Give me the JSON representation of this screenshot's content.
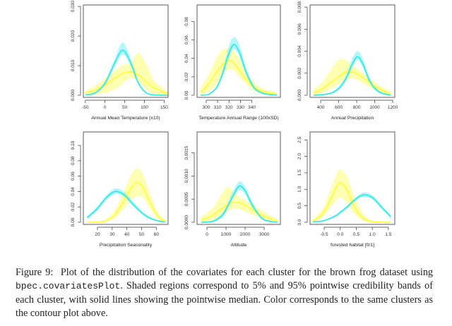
{
  "colors": {
    "cluster_yellow": "#ffff33",
    "cluster_yellow_band": "#ffff66",
    "cluster_cyan": "#2ee6e6",
    "cluster_cyan_band": "#66f0f5",
    "axis": "#333333"
  },
  "chart_data": [
    {
      "type": "area",
      "xlabel": "Annual Mean Temperature (x10)",
      "xlim": [
        -55,
        160
      ],
      "ylim": [
        0,
        0.0305
      ],
      "xticks": [
        "-50",
        "0",
        "50",
        "100",
        "150"
      ],
      "yticks": [
        "0.000",
        "0.010",
        "0.020",
        "0.030"
      ],
      "x": [
        -50,
        -25,
        0,
        25,
        45,
        65,
        85,
        105,
        125,
        160
      ],
      "series": [
        {
          "color": "yellow",
          "median": [
            0.0008,
            0.0018,
            0.0035,
            0.0058,
            0.0074,
            0.0079,
            0.0068,
            0.0045,
            0.0025,
            0.0005
          ],
          "lower": [
            0.0001,
            0.0003,
            0.0008,
            0.002,
            0.004,
            0.0058,
            0.0045,
            0.002,
            0.0005,
            0
          ],
          "upper": [
            0.0015,
            0.0032,
            0.0055,
            0.0083,
            0.0102,
            0.011,
            0.0143,
            0.0105,
            0.005,
            0.0012
          ]
        },
        {
          "color": "cyan",
          "median": [
            0.0001,
            0.0008,
            0.004,
            0.011,
            0.0152,
            0.011,
            0.004,
            0.0008,
            0.0001,
            0
          ],
          "lower": [
            0,
            0.0006,
            0.0035,
            0.0098,
            0.0138,
            0.0098,
            0.0035,
            0.0006,
            0,
            0
          ],
          "upper": [
            0.0002,
            0.0011,
            0.0048,
            0.0124,
            0.0178,
            0.0124,
            0.0047,
            0.001,
            0.0002,
            0
          ]
        }
      ]
    },
    {
      "type": "area",
      "xlabel": "Temperature Annual Range (100xSD)",
      "xlim": [
        292,
        365
      ],
      "ylim": [
        0,
        0.098
      ],
      "xticks": [
        "300",
        "310",
        "320",
        "330",
        "340"
      ],
      "yticks": [
        "0.00",
        "0.02",
        "0.04",
        "0.06",
        "0.08"
      ],
      "x": [
        295,
        302,
        309,
        314,
        319,
        324,
        329,
        335,
        342,
        350,
        362
      ],
      "series": [
        {
          "color": "yellow",
          "median": [
            0.003,
            0.012,
            0.025,
            0.033,
            0.038,
            0.035,
            0.027,
            0.017,
            0.009,
            0.004,
            0.001
          ],
          "lower": [
            0.0005,
            0.004,
            0.012,
            0.022,
            0.028,
            0.027,
            0.02,
            0.012,
            0.005,
            0.002,
            0
          ],
          "upper": [
            0.008,
            0.022,
            0.04,
            0.049,
            0.051,
            0.048,
            0.04,
            0.025,
            0.014,
            0.007,
            0.003
          ]
        },
        {
          "color": "cyan",
          "median": [
            0,
            0.001,
            0.008,
            0.022,
            0.042,
            0.055,
            0.047,
            0.025,
            0.008,
            0.002,
            0
          ],
          "lower": [
            0,
            0.0008,
            0.007,
            0.019,
            0.037,
            0.05,
            0.042,
            0.022,
            0.007,
            0.0015,
            0
          ],
          "upper": [
            0,
            0.0015,
            0.01,
            0.026,
            0.05,
            0.063,
            0.055,
            0.03,
            0.01,
            0.003,
            0
          ]
        }
      ]
    },
    {
      "type": "area",
      "xlabel": "Annual Precipitation",
      "xlim": [
        282,
        1223
      ],
      "ylim": [
        0,
        0.0082
      ],
      "xticks": [
        "400",
        "600",
        "800",
        "1000",
        "1200"
      ],
      "yticks": [
        "0.000",
        "0.002",
        "0.004",
        "0.006",
        "0.008"
      ],
      "x": [
        320,
        420,
        520,
        600,
        680,
        750,
        810,
        870,
        950,
        1050,
        1180
      ],
      "series": [
        {
          "color": "yellow",
          "median": [
            0.0002,
            0.0006,
            0.0012,
            0.0017,
            0.0021,
            0.0021,
            0.0019,
            0.0016,
            0.0011,
            0.0006,
            0.0001
          ],
          "lower": [
            0,
            0.0002,
            0.0006,
            0.001,
            0.0014,
            0.0015,
            0.0014,
            0.0011,
            0.0007,
            0.0003,
            0
          ],
          "upper": [
            0.0005,
            0.0012,
            0.0024,
            0.0032,
            0.0032,
            0.0027,
            0.0024,
            0.002,
            0.0015,
            0.0009,
            0.0003
          ]
        },
        {
          "color": "cyan",
          "median": [
            0,
            5e-05,
            0.0002,
            0.0006,
            0.0015,
            0.0028,
            0.0035,
            0.0028,
            0.0012,
            0.0003,
            0
          ],
          "lower": [
            0,
            0,
            0.00015,
            0.0005,
            0.0013,
            0.0025,
            0.0032,
            0.0025,
            0.001,
            0.0002,
            0
          ],
          "upper": [
            0,
            0.0001,
            0.0003,
            0.0008,
            0.0018,
            0.0033,
            0.004,
            0.0033,
            0.0015,
            0.0004,
            5e-05
          ]
        }
      ]
    },
    {
      "type": "area",
      "xlabel": "Precipitation Seasonality",
      "xlim": [
        10.4,
        68
      ],
      "ylim": [
        0,
        0.1175
      ],
      "xticks": [
        "20",
        "30",
        "40",
        "50",
        "60"
      ],
      "yticks": [
        "0.00",
        "0.02",
        "0.04",
        "0.06",
        "0.08",
        "0.10"
      ],
      "x": [
        13,
        20,
        26,
        32,
        38,
        43,
        47,
        51,
        56,
        61,
        66
      ],
      "series": [
        {
          "color": "yellow",
          "median": [
            0,
            0.0002,
            0.002,
            0.01,
            0.028,
            0.045,
            0.052,
            0.045,
            0.025,
            0.008,
            0.001
          ],
          "lower": [
            0,
            0,
            0.001,
            0.006,
            0.018,
            0.03,
            0.034,
            0.032,
            0.017,
            0.004,
            0
          ],
          "upper": [
            0,
            0.0006,
            0.004,
            0.016,
            0.04,
            0.062,
            0.07,
            0.062,
            0.035,
            0.013,
            0.004
          ]
        },
        {
          "color": "cyan",
          "median": [
            0.006,
            0.018,
            0.032,
            0.04,
            0.036,
            0.026,
            0.018,
            0.011,
            0.005,
            0.002,
            0.0003
          ],
          "lower": [
            0.004,
            0.015,
            0.029,
            0.037,
            0.033,
            0.023,
            0.016,
            0.009,
            0.004,
            0.001,
            0
          ],
          "upper": [
            0.008,
            0.021,
            0.035,
            0.044,
            0.04,
            0.029,
            0.021,
            0.013,
            0.007,
            0.003,
            0.001
          ]
        }
      ]
    },
    {
      "type": "area",
      "xlabel": "Altitude",
      "xlim": [
        -520,
        3850
      ],
      "ylim": [
        0,
        0.00195
      ],
      "xticks": [
        "0",
        "1000",
        "2000",
        "3000"
      ],
      "yticks": [
        "0.0000",
        "0.0005",
        "0.0010",
        "0.0015"
      ],
      "x": [
        -300,
        300,
        800,
        1100,
        1400,
        1700,
        2000,
        2400,
        2900,
        3300,
        3700
      ],
      "series": [
        {
          "color": "yellow",
          "median": [
            5e-05,
            0.00015,
            0.0003,
            0.00039,
            0.00043,
            0.00042,
            0.00037,
            0.00027,
            0.00015,
            8e-05,
            3e-05
          ],
          "lower": [
            0,
            5e-05,
            0.00015,
            0.00024,
            0.00029,
            0.00028,
            0.00024,
            0.00016,
            8e-05,
            3e-05,
            0
          ],
          "upper": [
            0.00012,
            0.0003,
            0.00063,
            0.00077,
            0.00065,
            0.00055,
            0.00048,
            0.00038,
            0.00025,
            0.00015,
            7e-05
          ]
        },
        {
          "color": "cyan",
          "median": [
            0,
            2e-05,
            0.00015,
            0.00036,
            0.0006,
            0.00078,
            0.00068,
            0.00035,
            8e-05,
            2e-05,
            0
          ],
          "lower": [
            0,
            1e-05,
            0.0001,
            0.0003,
            0.00053,
            0.0007,
            0.0006,
            0.0003,
            6e-05,
            1e-05,
            0
          ],
          "upper": [
            0,
            4e-05,
            0.0002,
            0.00043,
            0.0007,
            0.00088,
            0.00077,
            0.00042,
            0.00011,
            3e-05,
            0
          ]
        }
      ]
    },
    {
      "type": "area",
      "xlabel": "forested habitat [0/1]",
      "xlim": [
        -0.94,
        1.7
      ],
      "ylim": [
        0,
        2.74
      ],
      "xticks": [
        "-0.5",
        "0.0",
        "0.5",
        "1.0",
        "1.5"
      ],
      "yticks": [
        "0.0",
        "0.5",
        "1.0",
        "1.5",
        "2.0",
        "2.5"
      ],
      "x": [
        -0.85,
        -0.55,
        -0.3,
        -0.1,
        0,
        0.2,
        0.45,
        0.72,
        1.0,
        1.3,
        1.57
      ],
      "series": [
        {
          "color": "yellow",
          "median": [
            0.04,
            0.25,
            0.7,
            1.1,
            1.2,
            1.0,
            0.45,
            0.12,
            0.02,
            0,
            0
          ],
          "lower": [
            0.01,
            0.15,
            0.45,
            0.7,
            0.75,
            0.6,
            0.25,
            0.05,
            0.005,
            0,
            0
          ],
          "upper": [
            0.1,
            0.4,
            1.0,
            1.5,
            1.6,
            1.4,
            0.75,
            0.25,
            0.05,
            0.01,
            0
          ]
        },
        {
          "color": "cyan",
          "median": [
            0.01,
            0.04,
            0.12,
            0.22,
            0.3,
            0.45,
            0.68,
            0.83,
            0.75,
            0.45,
            0.17
          ],
          "lower": [
            0,
            0.03,
            0.1,
            0.19,
            0.26,
            0.41,
            0.63,
            0.77,
            0.69,
            0.39,
            0.12
          ],
          "upper": [
            0.02,
            0.06,
            0.15,
            0.26,
            0.34,
            0.5,
            0.73,
            0.9,
            0.82,
            0.5,
            0.22
          ]
        }
      ]
    }
  ],
  "caption": {
    "label": "Figure 9:",
    "text_before_code": "Plot of the distribution of the covariates for each cluster for the brown frog dataset using",
    "code": "bpec.covariatesPlot",
    "text_after_code": ". Shaded regions correspond to 5% and 95% pointwise credibility bands of each cluster, with solid lines showing the pointwise median. Color corresponds to the same clusters as the contour plot above."
  }
}
